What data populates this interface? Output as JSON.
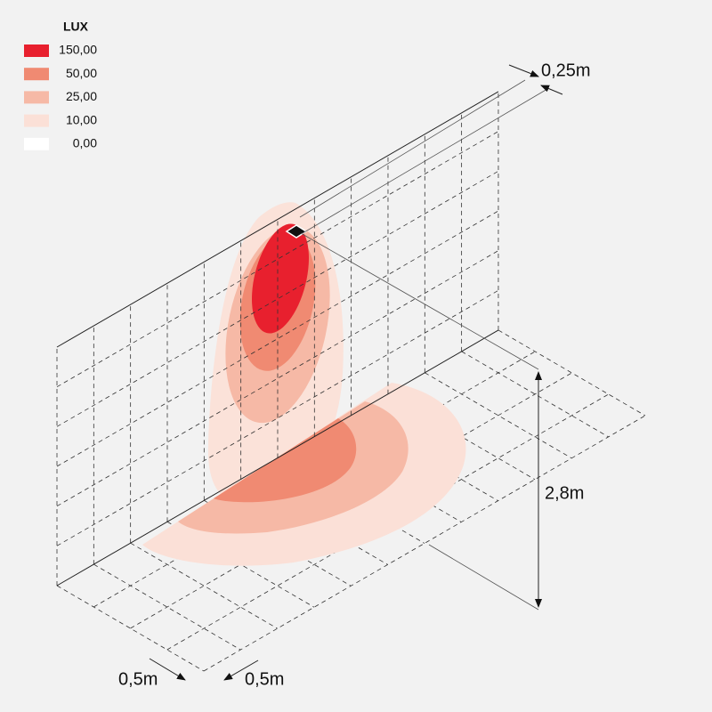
{
  "legend": {
    "title": "LUX",
    "items": [
      {
        "label": "150,00",
        "color": "#e8202e"
      },
      {
        "label": "50,00",
        "color": "#f08a72"
      },
      {
        "label": "25,00",
        "color": "#f6b9a6"
      },
      {
        "label": "10,00",
        "color": "#fbe0d7"
      },
      {
        "label": "0,00",
        "color": "#ffffff"
      }
    ]
  },
  "dimensions": {
    "depth": "0,25m",
    "height": "2,8m",
    "grid_x": "0,5m",
    "grid_y": "0,5m"
  }
}
